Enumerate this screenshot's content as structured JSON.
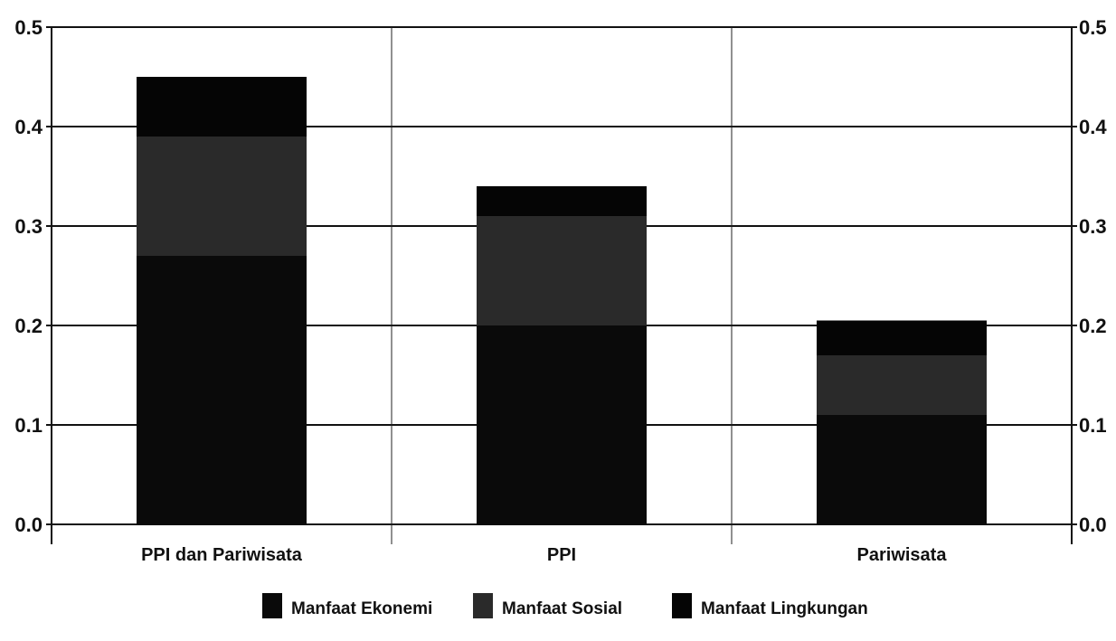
{
  "chart_data": {
    "type": "bar",
    "stacked": true,
    "categories": [
      "PPI  dan Pariwisata",
      "PPI",
      "Pariwisata"
    ],
    "series": [
      {
        "name": "Manfaat Ekonemi",
        "values": [
          0.27,
          0.2,
          0.11
        ],
        "color": "#0a0a0a"
      },
      {
        "name": "Manfaat Sosial",
        "values": [
          0.12,
          0.11,
          0.06
        ],
        "color": "#2a2a2a"
      },
      {
        "name": "Manfaat Lingkungan",
        "values": [
          0.06,
          0.03,
          0.035
        ],
        "color": "#050505"
      }
    ],
    "ylim": [
      0,
      0.5
    ],
    "yticks": [
      "0.0",
      "0.1",
      "0.2",
      "0.3",
      "0.4",
      "0.5"
    ],
    "y2ticks": [
      "0.0",
      "0.1",
      "0.2",
      "0.3",
      "0.4",
      "0.5"
    ],
    "grid": true,
    "legend_position": "bottom",
    "title": "",
    "xlabel": "",
    "ylabel": ""
  }
}
